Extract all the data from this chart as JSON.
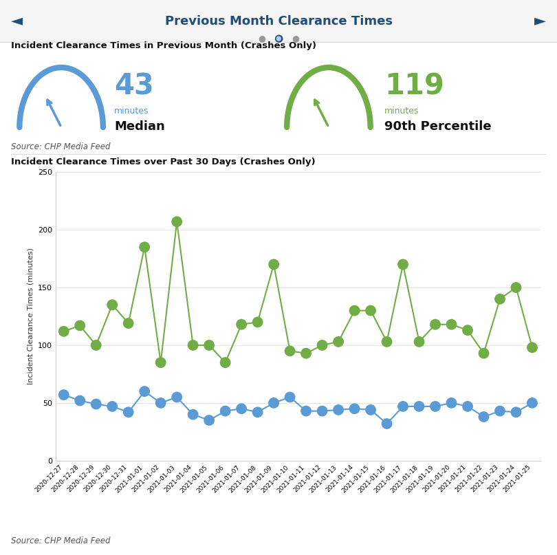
{
  "title": "Previous Month Clearance Times",
  "subtitle1": "Incident Clearance Times in Previous Month (Crashes Only)",
  "subtitle2": "Incident Clearance Times over Past 30 Days (Crashes Only)",
  "source": "Source: CHP Media Feed",
  "median_value": 43,
  "p90_value": 119,
  "dates": [
    "2020-12-27",
    "2020-12-28",
    "2020-12-29",
    "2020-12-30",
    "2020-12-31",
    "2021-01-01",
    "2021-01-02",
    "2021-01-03",
    "2021-01-04",
    "2021-01-05",
    "2021-01-06",
    "2021-01-07",
    "2021-01-08",
    "2021-01-09",
    "2021-01-10",
    "2021-01-11",
    "2021-01-12",
    "2021-01-13",
    "2021-01-14",
    "2021-01-15",
    "2021-01-16",
    "2021-01-17",
    "2021-01-18",
    "2021-01-19",
    "2021-01-20",
    "2021-01-21",
    "2021-01-22",
    "2021-01-23",
    "2021-01-24",
    "2021-01-25"
  ],
  "median_data": [
    57,
    52,
    49,
    47,
    42,
    60,
    50,
    55,
    40,
    35,
    43,
    45,
    42,
    50,
    55,
    43,
    43,
    44,
    45,
    44,
    32,
    47,
    47,
    47,
    50,
    47,
    38,
    43,
    42,
    50
  ],
  "p90_data": [
    112,
    117,
    100,
    135,
    119,
    185,
    85,
    207,
    100,
    100,
    85,
    118,
    120,
    170,
    95,
    93,
    100,
    103,
    130,
    130,
    103,
    170,
    103,
    118,
    118,
    113,
    93,
    140,
    150,
    98
  ],
  "median_color": "#5b9bd5",
  "p90_color": "#70ad47",
  "bg_color": "#ffffff",
  "title_color": "#1f4e79",
  "ylim": [
    0,
    250
  ],
  "yticks": [
    0,
    50,
    100,
    150,
    200,
    250
  ],
  "nav_arrow_color": "#1f4e79",
  "dot_colors": [
    "#999999",
    "#1f4e79",
    "#999999"
  ]
}
